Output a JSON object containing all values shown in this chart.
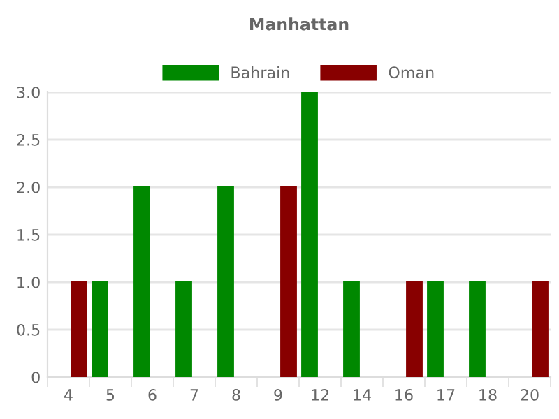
{
  "chart_data": {
    "type": "bar",
    "title": "Manhattan",
    "categories": [
      "4",
      "5",
      "6",
      "7",
      "8",
      "9",
      "12",
      "14",
      "16",
      "17",
      "18",
      "20"
    ],
    "series": [
      {
        "name": "Bahrain",
        "color": "#008800",
        "values": [
          null,
          1,
          2,
          1,
          2,
          null,
          3,
          1,
          null,
          1,
          1,
          null
        ]
      },
      {
        "name": "Oman",
        "color": "#880000",
        "values": [
          1,
          null,
          null,
          null,
          null,
          2,
          null,
          null,
          1,
          null,
          null,
          1
        ]
      }
    ],
    "ylim": [
      0,
      3
    ],
    "yticks": [
      0,
      0.5,
      {
        "value": 1,
        "label": "1.0"
      },
      1.5,
      {
        "value": 2,
        "label": "2.0"
      },
      2.5,
      {
        "value": 3,
        "label": "3.0"
      }
    ],
    "grid": "y",
    "legend": "top"
  }
}
